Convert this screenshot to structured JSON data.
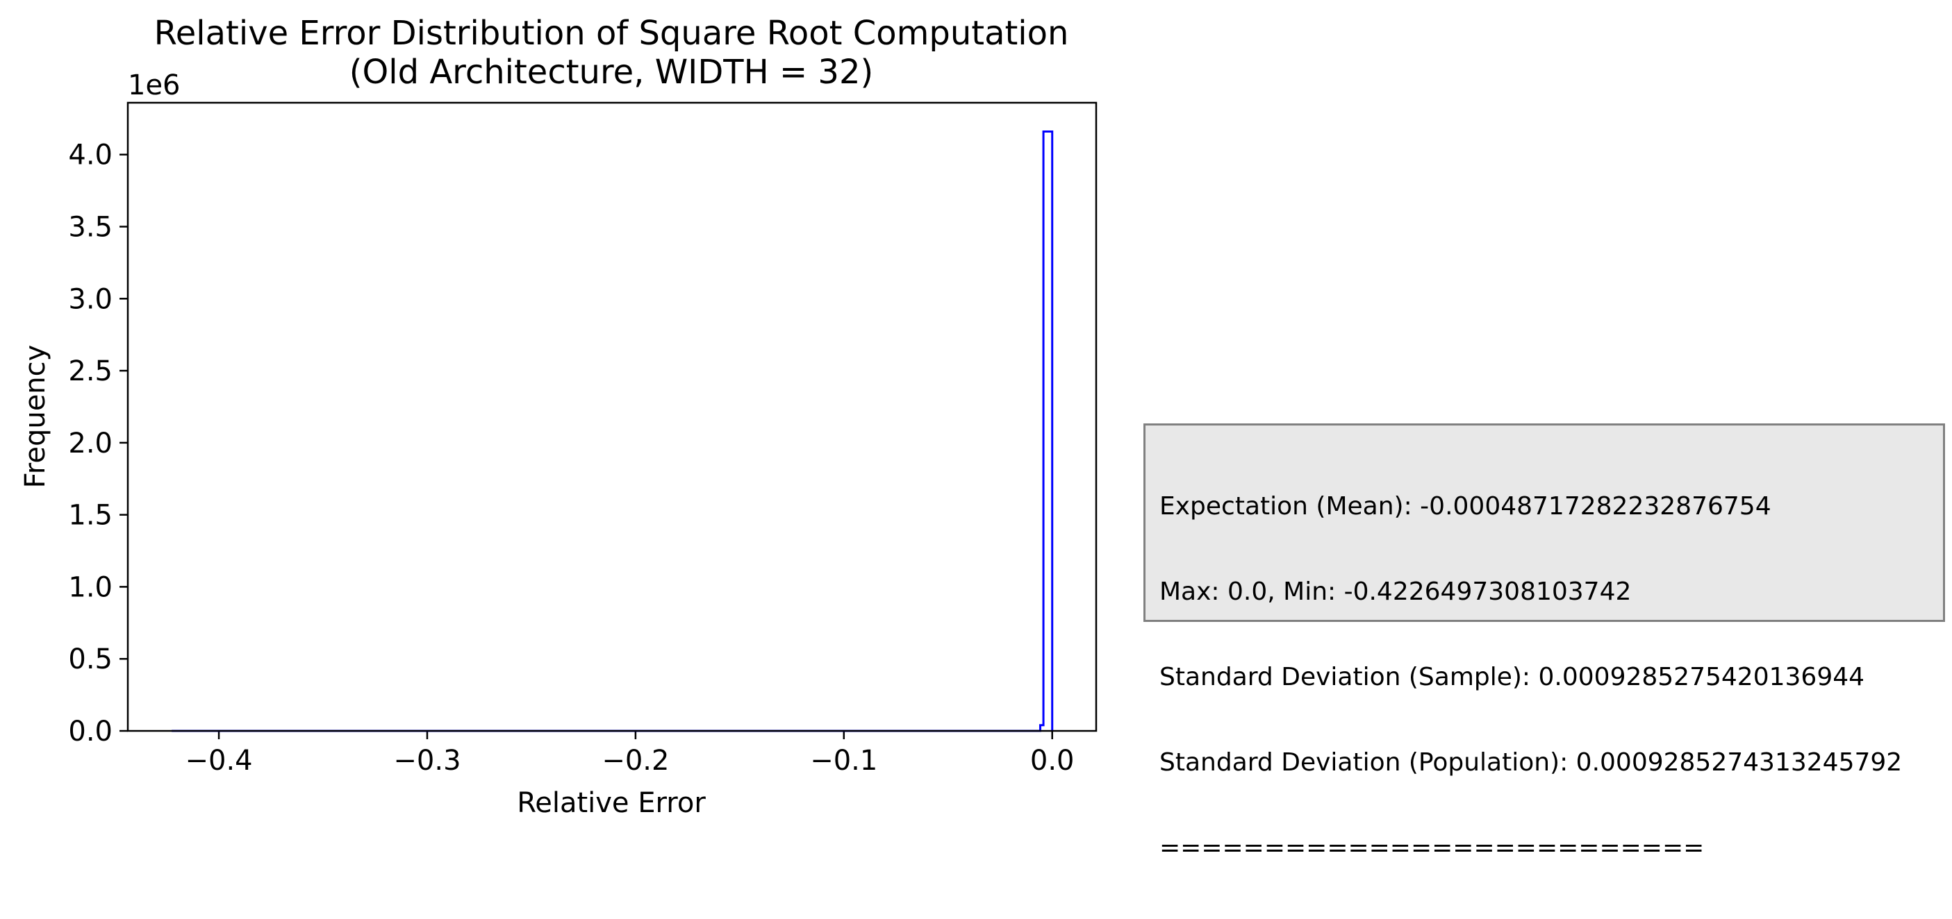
{
  "chart_data": {
    "type": "histogram",
    "title": [
      "Relative Error Distribution of Square Root Computation",
      "(Old Architecture, WIDTH = 32)"
    ],
    "xlabel": "Relative Error",
    "ylabel": "Frequency",
    "y_offset_label": "1e6",
    "y_scale": 1000000,
    "xlim": [
      -0.4437,
      0.0211
    ],
    "ylim": [
      0,
      4360000
    ],
    "x_ticks": [
      -0.4,
      -0.3,
      -0.2,
      -0.1,
      0.0
    ],
    "x_tick_labels": [
      "−0.4",
      "−0.3",
      "−0.2",
      "−0.1",
      "0.0"
    ],
    "y_ticks": [
      0,
      500000,
      1000000,
      1500000,
      2000000,
      2500000,
      3000000,
      3500000,
      4000000
    ],
    "y_tick_labels": [
      "0.0",
      "0.5",
      "1.0",
      "1.5",
      "2.0",
      "2.5",
      "3.0",
      "3.5",
      "4.0"
    ],
    "histtype": "step",
    "color": "#0000ff",
    "bins": [
      {
        "x0": -0.42265,
        "x1": -0.00575,
        "count": 0
      },
      {
        "x0": -0.00575,
        "x1": -0.00422,
        "count": 40000
      },
      {
        "x0": -0.00422,
        "x1": -0.00211,
        "count": 4160000
      },
      {
        "x0": -0.00211,
        "x1": 0.0,
        "count": 4160000
      }
    ],
    "grid": false,
    "legend": "none"
  },
  "stats": {
    "lines": [
      "Expectation (Mean): -0.00048717282232876754",
      "Max: 0.0, Min: -0.4226497308103742",
      "Standard Deviation (Sample): 0.0009285275420136944",
      "Standard Deviation (Population): 0.0009285274313245792",
      "=========================="
    ]
  }
}
